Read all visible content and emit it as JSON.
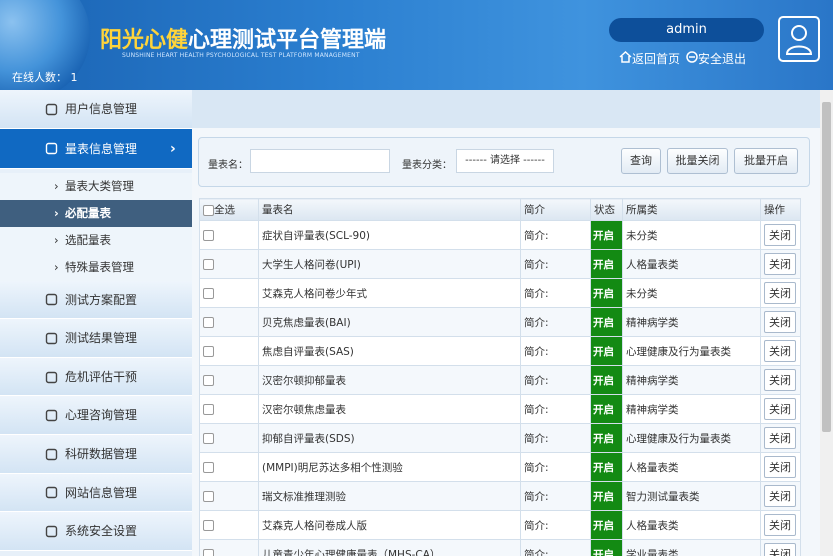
{
  "header": {
    "title_highlight": "阳光心健",
    "title": "心理测试平台管理端",
    "subtitle": "SUNSHINE HEART HEALTH PSYCHOLOGICAL TEST PLATFORM MANAGEMENT",
    "online_label": "在线人数：",
    "online_count": "1",
    "user": "admin",
    "home": "返回首页",
    "logout": "安全退出"
  },
  "menu": [
    {
      "label": "用户信息管理"
    },
    {
      "label": "量表信息管理",
      "active": true,
      "children": [
        {
          "label": "量表大类管理"
        },
        {
          "label": "必配量表",
          "active": true
        },
        {
          "label": "选配量表"
        },
        {
          "label": "特殊量表管理"
        }
      ]
    },
    {
      "label": "测试方案配置"
    },
    {
      "label": "测试结果管理"
    },
    {
      "label": "危机评估干预"
    },
    {
      "label": "心理咨询管理"
    },
    {
      "label": "科研数据管理"
    },
    {
      "label": "网站信息管理"
    },
    {
      "label": "系统安全设置"
    }
  ],
  "search": {
    "name_label": "量表名：",
    "category_label": "量表分类：",
    "category_placeholder": "------ 请选择 ------",
    "buttons": [
      "查询",
      "批量关闭",
      "批量开启"
    ]
  },
  "table": {
    "columns": [
      "全选",
      "量表名",
      "简介",
      "状态",
      "所属类",
      "操作"
    ],
    "rows": [
      [
        "症状自评量表(SCL-90)",
        "简介:",
        "开启",
        "未分类",
        "关闭"
      ],
      [
        "大学生人格问卷(UPI)",
        "简介:",
        "开启",
        "人格量表类",
        "关闭"
      ],
      [
        "艾森克人格问卷少年式",
        "简介:",
        "开启",
        "未分类",
        "关闭"
      ],
      [
        "贝克焦虑量表(BAI)",
        "简介:",
        "开启",
        "精神病学类",
        "关闭"
      ],
      [
        "焦虑自评量表(SAS)",
        "简介:",
        "开启",
        "心理健康及行为量表类",
        "关闭"
      ],
      [
        "汉密尔顿抑郁量表",
        "简介:",
        "开启",
        "精神病学类",
        "关闭"
      ],
      [
        "汉密尔顿焦虑量表",
        "简介:",
        "开启",
        "精神病学类",
        "关闭"
      ],
      [
        "抑郁自评量表(SDS)",
        "简介:",
        "开启",
        "心理健康及行为量表类",
        "关闭"
      ],
      [
        "(MMPI)明尼苏达多相个性测验",
        "简介:",
        "开启",
        "人格量表类",
        "关闭"
      ],
      [
        "瑞文标准推理测验",
        "简介:",
        "开启",
        "智力测试量表类",
        "关闭"
      ],
      [
        "艾森克人格问卷成人版",
        "简介:",
        "开启",
        "人格量表类",
        "关闭"
      ],
      [
        "儿童青少年心理健康量表（MHS-CA）",
        "简介:",
        "开启",
        "学业量表类",
        "关闭"
      ]
    ]
  }
}
